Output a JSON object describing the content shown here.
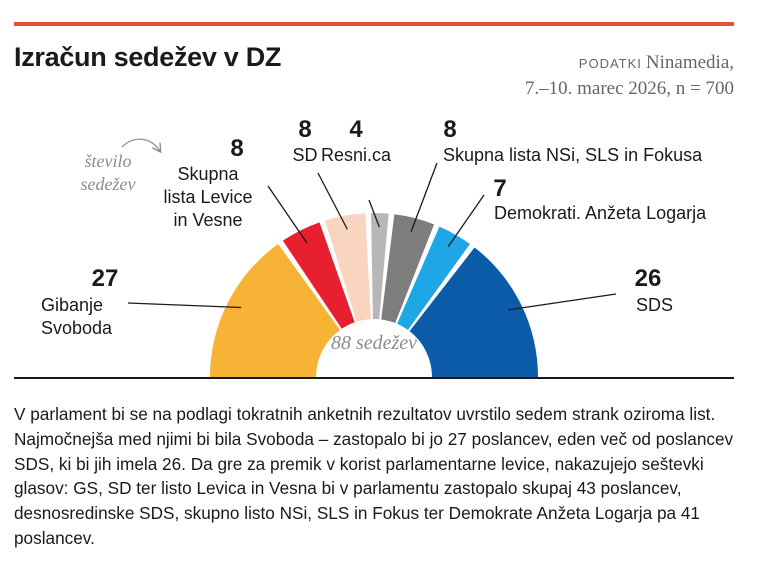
{
  "header": {
    "title": "Izračun sedežev v DZ",
    "source_label": "PODATKI",
    "source_name": "Ninamedia,",
    "source_detail": "7.–10. marec 2026, n = 700"
  },
  "chart_data": {
    "type": "parliament-semicircle",
    "title": "Izračun sedežev v DZ",
    "unit_hint": [
      "število",
      "sedežev"
    ],
    "total_label": "88 sedežev",
    "total": 88,
    "series": [
      {
        "name": "Gibanje Svoboda",
        "label_lines": [
          "Gibanje",
          "Svoboda"
        ],
        "seats": 27,
        "color": "#f6b335"
      },
      {
        "name": "Skupna lista Levice in Vesne",
        "label_lines": [
          "Skupna",
          "lista Levice",
          "in Vesne"
        ],
        "seats": 8,
        "color": "#e6202e"
      },
      {
        "name": "SD",
        "label_lines": [
          "SD"
        ],
        "seats": 8,
        "color": "#f9d4be"
      },
      {
        "name": "Resni.ca",
        "label_lines": [
          "Resni.ca"
        ],
        "seats": 4,
        "color": "#b7b7b7"
      },
      {
        "name": "Skupna lista NSi, SLS in Fokusa",
        "label_lines": [
          "Skupna lista NSi, SLS in Fokusa"
        ],
        "seats": 8,
        "color": "#7d7d7d"
      },
      {
        "name": "Demokrati. Anžeta Logarja",
        "label_lines": [
          "Demokrati. Anžeta Logarja"
        ],
        "seats": 7,
        "color": "#1fa6e6"
      },
      {
        "name": "SDS",
        "label_lines": [
          "SDS"
        ],
        "seats": 26,
        "color": "#0c5ba9"
      }
    ]
  },
  "body": {
    "text": "V parlament bi se na podlagi tokratnih anketnih rezultatov uvrstilo sedem strank oziroma list. Najmočnejša med njimi bi bila Svoboda – zastopalo bi jo 27 poslancev, eden več od poslancev SDS, ki bi jih imela 26. Da gre za premik v korist parlamentarne levice, nakazujejo seštevki glasov: GS, SD ter listo Levica in Vesna bi v parlamentu zastopalo skupaj 43 poslancev, desnosredinske SDS, skupno listo NSi, SLS in Fokus ter Demokrate Anžeta Logarja pa 41 poslancev."
  }
}
